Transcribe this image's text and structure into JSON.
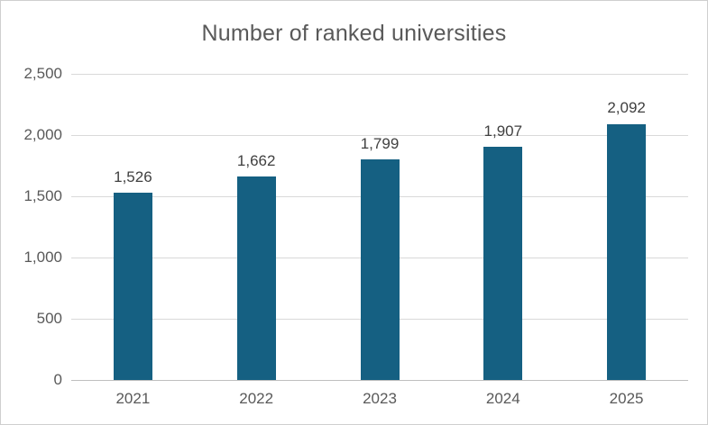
{
  "chart_data": {
    "type": "bar",
    "title": "Number of ranked universities",
    "categories": [
      "2021",
      "2022",
      "2023",
      "2024",
      "2025"
    ],
    "values": [
      1526,
      1662,
      1799,
      1907,
      2092
    ],
    "value_labels": [
      "1,526",
      "1,662",
      "1,799",
      "1,907",
      "2,092"
    ],
    "xlabel": "",
    "ylabel": "",
    "ylim": [
      0,
      2500
    ],
    "y_ticks": [
      0,
      500,
      1000,
      1500,
      2000,
      2500
    ],
    "y_tick_labels": [
      "0",
      "500",
      "1,000",
      "1,500",
      "2,000",
      "2,500"
    ],
    "grid": true,
    "legend": false,
    "colors": {
      "bar": "#156082",
      "title_text": "#595959",
      "axis_text": "#595959",
      "data_label_text": "#404040",
      "gridline": "#d9d9d9",
      "axis_line": "#bfbfbf",
      "background": "#ffffff",
      "frame_border": "#cfcfcf"
    }
  }
}
